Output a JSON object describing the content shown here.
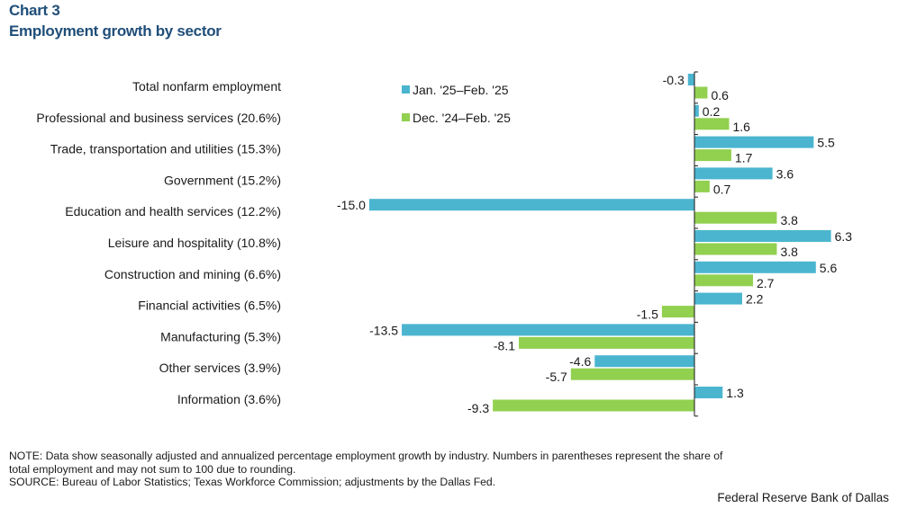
{
  "header": {
    "chart_number": "Chart 3",
    "title": "Employment growth by sector"
  },
  "colors": {
    "series1": "#4bb5cf",
    "series2": "#92d050",
    "axis": "#1a1a1a"
  },
  "chart_data": {
    "type": "bar",
    "orientation": "horizontal",
    "title": "Employment growth by sector",
    "categories": [
      "Total nonfarm employment",
      "Professional and business services (20.6%)",
      "Trade, transportation and utilities (15.3%)",
      "Government  (15.2%)",
      "Education and health services (12.2%)",
      "Leisure and hospitality (10.8%)",
      "Construction and mining (6.6%)",
      "Financial activities  (6.5%)",
      "Manufacturing  (5.3%)",
      "Other services  (3.9%)",
      "Information  (3.6%)"
    ],
    "series": [
      {
        "name": "Jan. '25–Feb. '25",
        "values": [
          -0.3,
          0.2,
          5.5,
          3.6,
          -15.0,
          6.3,
          5.6,
          2.2,
          -13.5,
          -4.6,
          1.3
        ],
        "labels": [
          "-0.3",
          "0.2",
          "5.5",
          "3.6",
          "-15.0",
          "6.3",
          "5.6",
          "2.2",
          "-13.5",
          "-4.6",
          "1.3"
        ]
      },
      {
        "name": "Dec. '24–Feb. '25",
        "values": [
          0.6,
          1.6,
          1.7,
          0.7,
          3.8,
          3.8,
          2.7,
          -1.5,
          -8.1,
          -5.7,
          -9.3
        ],
        "labels": [
          "0.6",
          "1.6",
          "1.7",
          "0.7",
          "3.8",
          "3.8",
          "2.7",
          "-1.5",
          "-8.1",
          "-5.7",
          "-9.3"
        ]
      }
    ],
    "xlim": [
      -16,
      7
    ],
    "legend_position": "top-center",
    "grid": false
  },
  "notes": {
    "note_line1": "NOTE: Data show seasonally adjusted and annualized percentage employment growth by industry. Numbers in parentheses represent the share of",
    "note_line2": "total employment and may not sum to 100 due to rounding.",
    "source": "SOURCE: Bureau of Labor Statistics; Texas Workforce Commission; adjustments by the Dallas Fed."
  },
  "credit": "Federal Reserve Bank of Dallas"
}
